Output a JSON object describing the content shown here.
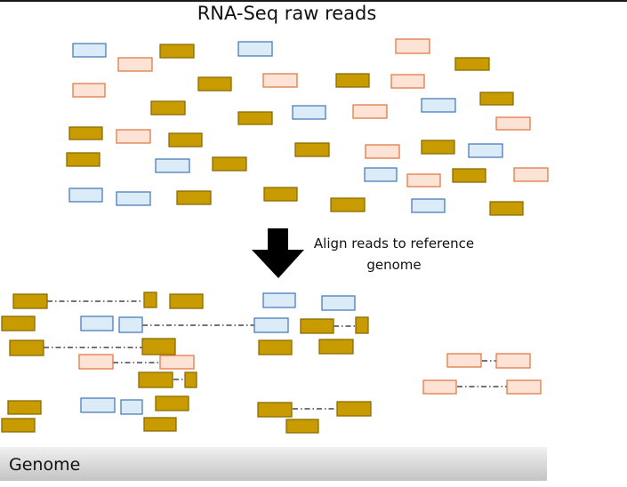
{
  "title": "RNA-Seq raw reads",
  "caption_lines": [
    "Align reads to reference",
    "genome"
  ],
  "genome_label": "Genome",
  "colors": {
    "gold_fill": "#C89B00",
    "gold_stroke": "#8C6C00",
    "blue_fill": "#DCEBF8",
    "blue_stroke": "#4A7EBB",
    "peach_fill": "#FCE3D6",
    "peach_stroke": "#E07B45",
    "dash": "#222222",
    "arrow": "#000000"
  }
}
